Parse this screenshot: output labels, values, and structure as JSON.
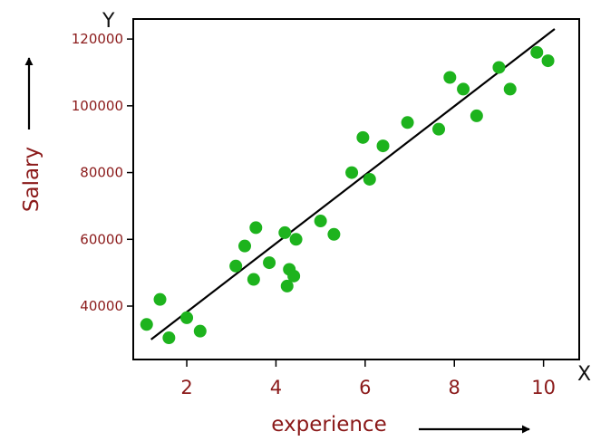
{
  "chart_data": {
    "type": "scatter",
    "xlabel": "experience",
    "ylabel": "Salary",
    "x_axis_letter": "X",
    "y_axis_letter": "Y",
    "xlim": [
      0.8,
      10.8
    ],
    "ylim": [
      24000,
      126000
    ],
    "xticks": [
      2,
      4,
      6,
      8,
      10
    ],
    "yticks": [
      40000,
      60000,
      80000,
      100000,
      120000
    ],
    "grid": false,
    "colors": {
      "points": "#1db31d",
      "line": "#000000",
      "labels": "#8b1a1a",
      "frame": "#000000"
    },
    "trend_line": {
      "x": [
        1.2,
        10.25
      ],
      "y": [
        30000,
        123000
      ]
    },
    "points": [
      {
        "x": 1.1,
        "y": 34500
      },
      {
        "x": 1.4,
        "y": 42000
      },
      {
        "x": 1.6,
        "y": 30500
      },
      {
        "x": 2.0,
        "y": 36500
      },
      {
        "x": 2.3,
        "y": 32500
      },
      {
        "x": 3.1,
        "y": 52000
      },
      {
        "x": 3.3,
        "y": 58000
      },
      {
        "x": 3.5,
        "y": 48000
      },
      {
        "x": 3.55,
        "y": 63500
      },
      {
        "x": 3.85,
        "y": 53000
      },
      {
        "x": 4.2,
        "y": 62000
      },
      {
        "x": 4.25,
        "y": 46000
      },
      {
        "x": 4.3,
        "y": 51000
      },
      {
        "x": 4.4,
        "y": 49000
      },
      {
        "x": 4.45,
        "y": 60000
      },
      {
        "x": 5.0,
        "y": 65500
      },
      {
        "x": 5.3,
        "y": 61500
      },
      {
        "x": 5.7,
        "y": 80000
      },
      {
        "x": 5.95,
        "y": 90500
      },
      {
        "x": 6.1,
        "y": 78000
      },
      {
        "x": 6.4,
        "y": 88000
      },
      {
        "x": 6.95,
        "y": 95000
      },
      {
        "x": 7.65,
        "y": 93000
      },
      {
        "x": 7.9,
        "y": 108500
      },
      {
        "x": 8.2,
        "y": 105000
      },
      {
        "x": 8.5,
        "y": 97000
      },
      {
        "x": 9.0,
        "y": 111500
      },
      {
        "x": 9.25,
        "y": 105000
      },
      {
        "x": 9.85,
        "y": 116000
      },
      {
        "x": 10.1,
        "y": 113500
      }
    ]
  }
}
